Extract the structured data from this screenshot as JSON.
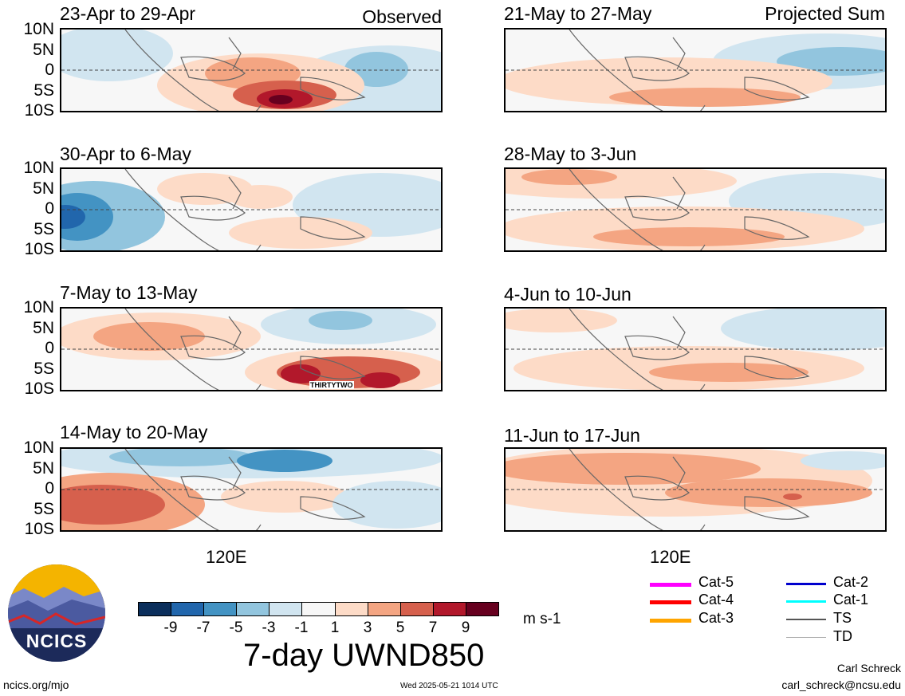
{
  "panels_observed": [
    {
      "title": "23-Apr to 29-Apr",
      "tag": "Observed"
    },
    {
      "title": "30-Apr to 6-May",
      "tag": ""
    },
    {
      "title": "7-May to 13-May",
      "tag": ""
    },
    {
      "title": "14-May to 20-May",
      "tag": ""
    }
  ],
  "panels_projected": [
    {
      "title": "21-May to 27-May",
      "tag": "Projected Sum"
    },
    {
      "title": "28-May to 3-Jun",
      "tag": ""
    },
    {
      "title": "4-Jun to 10-Jun",
      "tag": ""
    },
    {
      "title": "11-Jun to 17-Jun",
      "tag": ""
    }
  ],
  "lat_labels": [
    "10N",
    "5N",
    "0",
    "5S",
    "10S"
  ],
  "lon_label": "120E",
  "storm_label": "THIRTYTWO",
  "colorbar": {
    "colors": [
      "#0b2f5c",
      "#2166ac",
      "#4393c3",
      "#92c5de",
      "#d1e5f0",
      "#f7f7f7",
      "#fddbc7",
      "#f4a582",
      "#d6604d",
      "#b2182b",
      "#67001f"
    ],
    "labels": [
      "-9",
      "-7",
      "-5",
      "-3",
      "-1",
      "1",
      "3",
      "5",
      "7",
      "9"
    ],
    "units": "m s-1"
  },
  "title": "7-day UWND850",
  "legend": [
    {
      "label": "Cat-5",
      "color": "#ff00ff"
    },
    {
      "label": "Cat-4",
      "color": "#ff0000"
    },
    {
      "label": "Cat-3",
      "color": "#ffa500"
    },
    {
      "label": "Cat-2",
      "color": "#0000cd"
    },
    {
      "label": "Cat-1",
      "color": "#00ffff"
    },
    {
      "label": "TS",
      "color": "#555555"
    },
    {
      "label": "TD",
      "color": "#aaaaaa"
    }
  ],
  "logo_text": "NCICS",
  "footer": {
    "left": "ncics.org/mjo",
    "center": "Wed 2025-05-21 1014 UTC",
    "author": "Carl Schreck",
    "email": "carl_schreck@ncsu.edu"
  }
}
